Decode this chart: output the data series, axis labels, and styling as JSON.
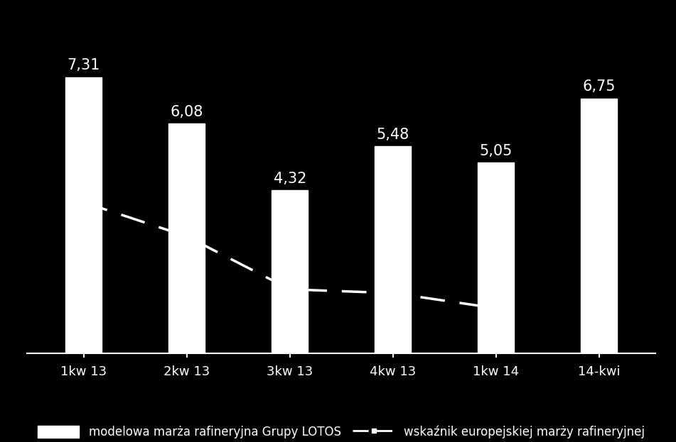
{
  "categories": [
    "1kw 13",
    "2kw 13",
    "3kw 13",
    "4kw 13",
    "1kw 14",
    "14-kwi"
  ],
  "bar_values": [
    7.31,
    6.08,
    4.32,
    5.48,
    5.05,
    6.75
  ],
  "bar_labels": [
    "7,31",
    "6,08",
    "4,32",
    "5,48",
    "5,05",
    "6,75"
  ],
  "line_values": [
    4.0,
    3.1,
    1.7,
    1.6,
    1.2,
    null
  ],
  "background_color": "#000000",
  "bar_color": "#ffffff",
  "bar_edge_color": "#ffffff",
  "line_color": "#ffffff",
  "text_color": "#ffffff",
  "label_fontsize": 15,
  "tick_fontsize": 13,
  "legend_fontsize": 12,
  "ylim": [
    0,
    9
  ],
  "bar_width": 0.35,
  "legend_label_bar": "modelowa marża rafineryjna Grupy LOTOS",
  "legend_label_line": "wskaźnik europejskiej marży rafineryjnej"
}
